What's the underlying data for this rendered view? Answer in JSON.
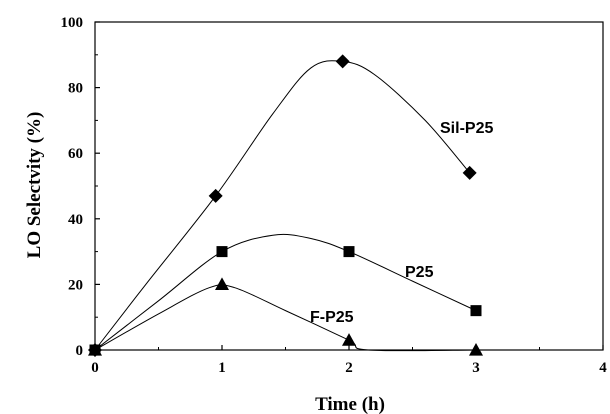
{
  "chart_data": {
    "type": "scatter",
    "xlabel": "Time (h)",
    "ylabel": "LO Selectvity (%)",
    "xlim": [
      0,
      4
    ],
    "ylim": [
      0,
      100
    ],
    "xticks": [
      "0",
      "1",
      "2",
      "3",
      "4"
    ],
    "yticks": [
      "0",
      "20",
      "40",
      "60",
      "80",
      "100"
    ],
    "grid": false,
    "legend": "none",
    "series": [
      {
        "name": "Sil-P25",
        "marker": "diamond",
        "x": [
          0,
          0.95,
          1.95,
          2.95
        ],
        "y": [
          0,
          47,
          88,
          54
        ],
        "curve_x": [
          0,
          0.4,
          0.95,
          1.4,
          1.7,
          1.95,
          2.2,
          2.6,
          2.95
        ],
        "curve_y": [
          0,
          20,
          47,
          72,
          86,
          88,
          84,
          70,
          54
        ]
      },
      {
        "name": "P25",
        "marker": "square",
        "x": [
          0,
          1,
          2,
          3
        ],
        "y": [
          0,
          30,
          30,
          12
        ],
        "curve_x": [
          0,
          0.5,
          1,
          1.4,
          1.7,
          2,
          2.5,
          3
        ],
        "curve_y": [
          0,
          15,
          30,
          35,
          34,
          30,
          21,
          12
        ]
      },
      {
        "name": "F-P25",
        "marker": "triangle",
        "x": [
          0,
          1,
          2,
          3
        ],
        "y": [
          0,
          20,
          3,
          0
        ],
        "curve_x": [
          0,
          0.5,
          0.9,
          1.1,
          1.5,
          2,
          2.15,
          3
        ],
        "curve_y": [
          0,
          11,
          19,
          19,
          12,
          3,
          0,
          0
        ]
      }
    ]
  }
}
